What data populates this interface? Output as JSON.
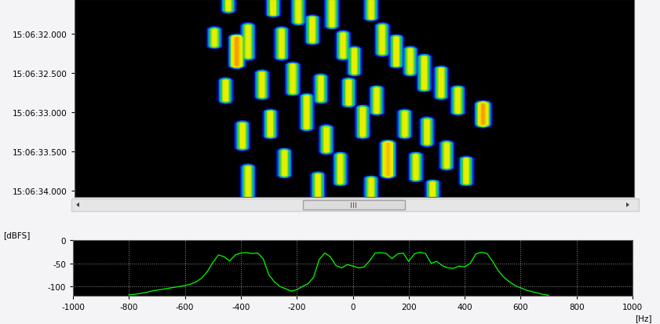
{
  "chart_data": [
    {
      "type": "heatmap",
      "xlim": [
        -1000,
        1000
      ],
      "ylim": [
        34.08,
        31.56
      ],
      "yticks": [
        {
          "value": 32.0,
          "label": "15:06:32.000"
        },
        {
          "value": 32.5,
          "label": "15:06:32.500"
        },
        {
          "value": 33.0,
          "label": "15:06:33.000"
        },
        {
          "value": 33.5,
          "label": "15:06:33.500"
        },
        {
          "value": 34.0,
          "label": "15:06:34.000"
        }
      ],
      "tick_labels": "y",
      "level_range": [
        -120,
        0
      ],
      "tones": [
        {
          "freq": -450,
          "start": 31.56,
          "end": 31.7,
          "level": -22
        },
        {
          "freq": -500,
          "start": 31.95,
          "end": 32.15,
          "level": -22
        },
        {
          "freq": -420,
          "start": 32.05,
          "end": 32.4,
          "level": -10
        },
        {
          "freq": -380,
          "start": 31.9,
          "end": 32.3,
          "level": -22
        },
        {
          "freq": -260,
          "start": 31.95,
          "end": 32.3,
          "level": -22
        },
        {
          "freq": -290,
          "start": 31.56,
          "end": 31.75,
          "level": -22
        },
        {
          "freq": -200,
          "start": 31.56,
          "end": 31.85,
          "level": -22
        },
        {
          "freq": -150,
          "start": 31.8,
          "end": 32.1,
          "level": -22
        },
        {
          "freq": -80,
          "start": 31.56,
          "end": 31.9,
          "level": -22
        },
        {
          "freq": -40,
          "start": 32.0,
          "end": 32.3,
          "level": -22
        },
        {
          "freq": 60,
          "start": 31.56,
          "end": 31.8,
          "level": -22
        },
        {
          "freq": 100,
          "start": 31.9,
          "end": 32.25,
          "level": -22
        },
        {
          "freq": 150,
          "start": 32.05,
          "end": 32.4,
          "level": -22
        },
        {
          "freq": 200,
          "start": 32.2,
          "end": 32.5,
          "level": -22
        },
        {
          "freq": 250,
          "start": 32.3,
          "end": 32.7,
          "level": -22
        },
        {
          "freq": 310,
          "start": 32.45,
          "end": 32.8,
          "level": -22
        },
        {
          "freq": 370,
          "start": 32.7,
          "end": 33.0,
          "level": -22
        },
        {
          "freq": 460,
          "start": 32.9,
          "end": 33.15,
          "level": -10
        },
        {
          "freq": -220,
          "start": 32.4,
          "end": 32.75,
          "level": -22
        },
        {
          "freq": -120,
          "start": 32.55,
          "end": 32.85,
          "level": -22
        },
        {
          "freq": -330,
          "start": 32.5,
          "end": 32.8,
          "level": -22
        },
        {
          "freq": -20,
          "start": 32.6,
          "end": 32.9,
          "level": -22
        },
        {
          "freq": 80,
          "start": 32.7,
          "end": 33.0,
          "level": -22
        },
        {
          "freq": -170,
          "start": 32.8,
          "end": 33.2,
          "level": -22
        },
        {
          "freq": 30,
          "start": 32.95,
          "end": 33.3,
          "level": -22
        },
        {
          "freq": 180,
          "start": 33.0,
          "end": 33.3,
          "level": -22
        },
        {
          "freq": 260,
          "start": 33.1,
          "end": 33.4,
          "level": -22
        },
        {
          "freq": -300,
          "start": 33.0,
          "end": 33.3,
          "level": -22
        },
        {
          "freq": -400,
          "start": 33.15,
          "end": 33.45,
          "level": -22
        },
        {
          "freq": -100,
          "start": 33.2,
          "end": 33.5,
          "level": -22
        },
        {
          "freq": 120,
          "start": 33.4,
          "end": 33.8,
          "level": -12
        },
        {
          "freq": -50,
          "start": 33.55,
          "end": 33.9,
          "level": -22
        },
        {
          "freq": 220,
          "start": 33.55,
          "end": 33.85,
          "level": -22
        },
        {
          "freq": 330,
          "start": 33.4,
          "end": 33.7,
          "level": -22
        },
        {
          "freq": -250,
          "start": 33.5,
          "end": 33.8,
          "level": -22
        },
        {
          "freq": -380,
          "start": 33.7,
          "end": 34.08,
          "level": -22
        },
        {
          "freq": -130,
          "start": 33.8,
          "end": 34.08,
          "level": -22
        },
        {
          "freq": 60,
          "start": 33.85,
          "end": 34.08,
          "level": -22
        },
        {
          "freq": 280,
          "start": 33.9,
          "end": 34.08,
          "level": -22
        },
        {
          "freq": -460,
          "start": 32.6,
          "end": 32.85,
          "level": -22
        },
        {
          "freq": 400,
          "start": 33.6,
          "end": 33.9,
          "level": -22
        },
        {
          "freq": 0,
          "start": 32.2,
          "end": 32.5,
          "level": -22
        }
      ]
    },
    {
      "type": "line",
      "x": [
        -800,
        -780,
        -760,
        -740,
        -720,
        -700,
        -680,
        -660,
        -640,
        -620,
        -600,
        -580,
        -560,
        -540,
        -520,
        -500,
        -480,
        -460,
        -440,
        -420,
        -400,
        -380,
        -360,
        -340,
        -320,
        -300,
        -280,
        -260,
        -240,
        -220,
        -200,
        -180,
        -160,
        -140,
        -120,
        -100,
        -80,
        -60,
        -40,
        -20,
        0,
        20,
        40,
        60,
        80,
        100,
        120,
        140,
        160,
        180,
        200,
        220,
        240,
        260,
        280,
        300,
        320,
        340,
        360,
        380,
        400,
        420,
        440,
        460,
        480,
        500,
        520,
        540,
        560,
        580,
        600,
        620,
        640,
        660,
        680,
        700
      ],
      "values": [
        -118,
        -117,
        -115,
        -113,
        -110,
        -108,
        -106,
        -104,
        -102,
        -100,
        -98,
        -95,
        -90,
        -82,
        -68,
        -48,
        -32,
        -36,
        -45,
        -32,
        -28,
        -27,
        -29,
        -28,
        -40,
        -75,
        -90,
        -100,
        -105,
        -110,
        -107,
        -100,
        -94,
        -80,
        -42,
        -28,
        -36,
        -55,
        -60,
        -53,
        -56,
        -60,
        -58,
        -45,
        -28,
        -27,
        -29,
        -40,
        -30,
        -28,
        -46,
        -30,
        -26,
        -29,
        -50,
        -46,
        -55,
        -60,
        -61,
        -56,
        -58,
        -50,
        -30,
        -26,
        -29,
        -46,
        -66,
        -80,
        -90,
        -98,
        -103,
        -108,
        -111,
        -114,
        -117,
        -119
      ],
      "color": "#00ff00",
      "xlim": [
        -1000,
        1000
      ],
      "xticks": [
        -1000,
        -800,
        -600,
        -400,
        -200,
        0,
        200,
        400,
        600,
        800,
        1000
      ],
      "ylim": [
        -120,
        0
      ],
      "yticks": [
        -100,
        -50,
        0
      ],
      "y_label": "[dBFS]",
      "x_label": "[Hz]",
      "grid": true
    }
  ]
}
